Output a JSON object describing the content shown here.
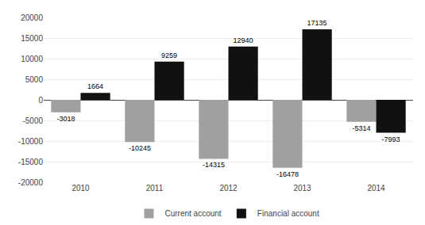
{
  "chart_data": {
    "type": "bar",
    "categories": [
      "2010",
      "2011",
      "2012",
      "2013",
      "2014"
    ],
    "series": [
      {
        "name": "Current account",
        "color": "#a0a0a0",
        "values": [
          -3018,
          -10245,
          -14315,
          -16478,
          -5314
        ]
      },
      {
        "name": "Financial account",
        "color": "#111111",
        "values": [
          1664,
          9259,
          12940,
          17135,
          -7993
        ]
      }
    ],
    "ylim": [
      -20000,
      20000
    ],
    "yticks": [
      -20000,
      -15000,
      -10000,
      -5000,
      0,
      5000,
      10000,
      15000,
      20000
    ],
    "grid": true,
    "legend": "bottom",
    "data_labels": true
  }
}
